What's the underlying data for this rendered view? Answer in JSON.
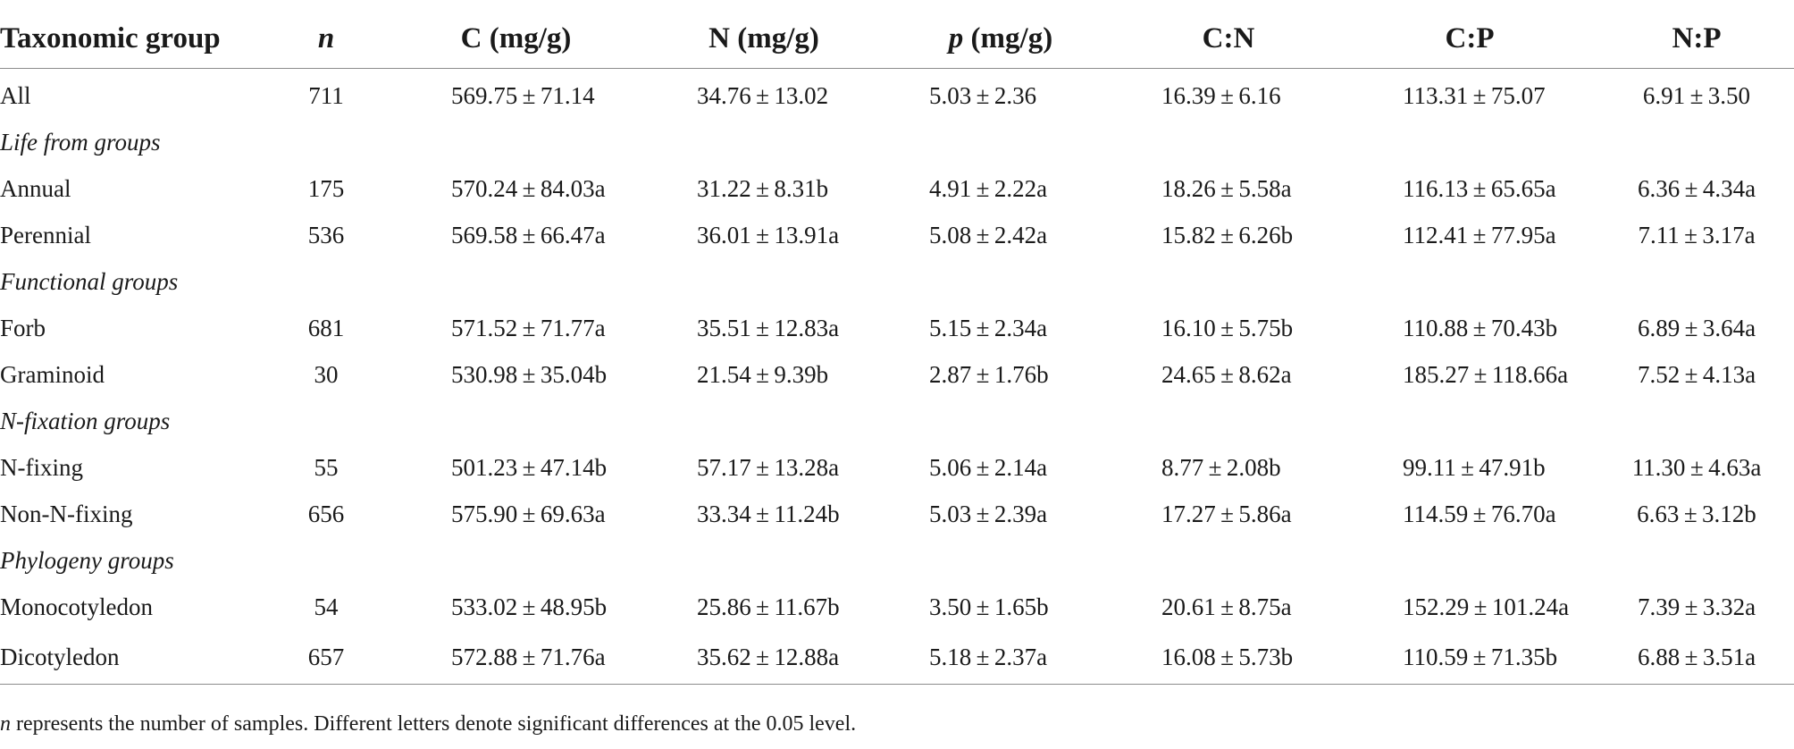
{
  "table": {
    "headers": [
      {
        "text": "Taxonomic group",
        "italic": false
      },
      {
        "text": "n",
        "italic": true
      },
      {
        "text": "C (mg/g)",
        "italic": false
      },
      {
        "text": "N (mg/g)",
        "italic": false
      },
      {
        "text": "p",
        "italic": true,
        "suffix": " (mg/g)"
      },
      {
        "text": "C:N",
        "italic": false
      },
      {
        "text": "C:P",
        "italic": false
      },
      {
        "text": "N:P",
        "italic": false
      }
    ],
    "rows": [
      {
        "type": "data",
        "cells": [
          "All",
          "711",
          "569.75 ± 71.14",
          "34.76 ± 13.02",
          "5.03 ± 2.36",
          "16.39 ± 6.16",
          "113.31 ± 75.07",
          "6.91 ± 3.50"
        ]
      },
      {
        "type": "group",
        "label": "Life from groups"
      },
      {
        "type": "data",
        "cells": [
          "Annual",
          "175",
          "570.24 ± 84.03a",
          "31.22 ± 8.31b",
          "4.91 ± 2.22a",
          "18.26 ± 5.58a",
          "116.13 ± 65.65a",
          "6.36 ± 4.34a"
        ]
      },
      {
        "type": "data",
        "cells": [
          "Perennial",
          "536",
          "569.58 ± 66.47a",
          "36.01 ± 13.91a",
          "5.08 ± 2.42a",
          "15.82 ± 6.26b",
          "112.41 ± 77.95a",
          "7.11 ± 3.17a"
        ]
      },
      {
        "type": "group",
        "label": "Functional groups"
      },
      {
        "type": "data",
        "cells": [
          "Forb",
          "681",
          "571.52 ± 71.77a",
          "35.51 ± 12.83a",
          "5.15 ± 2.34a",
          "16.10 ± 5.75b",
          "110.88 ± 70.43b",
          "6.89 ± 3.64a"
        ]
      },
      {
        "type": "data",
        "cells": [
          "Graminoid",
          "30",
          "530.98 ± 35.04b",
          "21.54 ± 9.39b",
          "2.87 ± 1.76b",
          "24.65 ± 8.62a",
          "185.27 ± 118.66a",
          "7.52 ± 4.13a"
        ]
      },
      {
        "type": "group",
        "label": "N-fixation groups"
      },
      {
        "type": "data",
        "cells": [
          "N-fixing",
          "55",
          "501.23 ± 47.14b",
          "57.17 ± 13.28a",
          "5.06 ± 2.14a",
          "8.77 ± 2.08b",
          "99.11 ± 47.91b",
          "11.30 ± 4.63a"
        ]
      },
      {
        "type": "data",
        "cells": [
          "Non-N-fixing",
          "656",
          "575.90 ± 69.63a",
          "33.34 ± 11.24b",
          "5.03 ± 2.39a",
          "17.27 ± 5.86a",
          "114.59 ± 76.70a",
          "6.63 ± 3.12b"
        ]
      },
      {
        "type": "group",
        "label": "Phylogeny groups"
      },
      {
        "type": "data",
        "cells": [
          "Monocotyledon",
          "54",
          "533.02 ± 48.95b",
          "25.86 ± 11.67b",
          "3.50 ± 1.65b",
          "20.61 ± 8.75a",
          "152.29 ± 101.24a",
          "7.39 ± 3.32a"
        ]
      },
      {
        "type": "data",
        "cells": [
          "Dicotyledon",
          "657",
          "572.88 ± 71.76a",
          "35.62 ± 12.88a",
          "5.18 ± 2.37a",
          "16.08 ± 5.73b",
          "110.59 ± 71.35b",
          "6.88 ± 3.51a"
        ]
      }
    ]
  },
  "footnote": {
    "italic_lead": "n",
    "text": " represents the number of samples. Different letters denote significant differences at the 0.05 level."
  }
}
